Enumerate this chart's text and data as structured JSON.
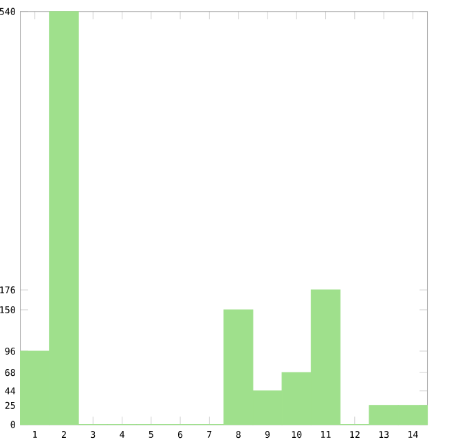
{
  "chart_data": {
    "type": "bar",
    "categories": [
      "1",
      "2",
      "3",
      "4",
      "5",
      "6",
      "7",
      "8",
      "9",
      "10",
      "11",
      "12",
      "13",
      "14"
    ],
    "values": [
      96,
      540,
      0,
      0,
      0,
      0,
      0,
      150,
      44,
      68,
      176,
      0,
      25,
      25
    ],
    "color": "#9fe08c",
    "ylim": [
      0,
      540
    ],
    "yticks": [
      0,
      25,
      44,
      68,
      96,
      150,
      176,
      540
    ],
    "grid": false
  }
}
